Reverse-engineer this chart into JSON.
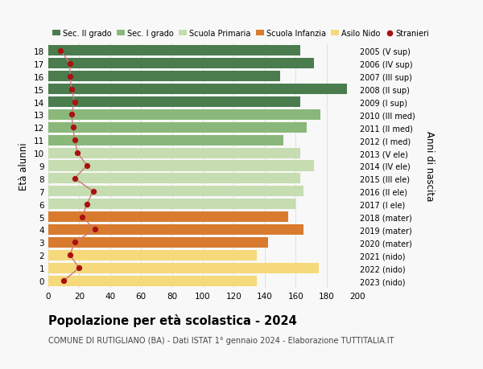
{
  "ages": [
    18,
    17,
    16,
    15,
    14,
    13,
    12,
    11,
    10,
    9,
    8,
    7,
    6,
    5,
    4,
    3,
    2,
    1,
    0
  ],
  "years": [
    "2005 (V sup)",
    "2006 (IV sup)",
    "2007 (III sup)",
    "2008 (II sup)",
    "2009 (I sup)",
    "2010 (III med)",
    "2011 (II med)",
    "2012 (I med)",
    "2013 (V ele)",
    "2014 (IV ele)",
    "2015 (III ele)",
    "2016 (II ele)",
    "2017 (I ele)",
    "2018 (mater)",
    "2019 (mater)",
    "2020 (mater)",
    "2021 (nido)",
    "2022 (nido)",
    "2023 (nido)"
  ],
  "bar_values": [
    163,
    172,
    150,
    193,
    163,
    176,
    167,
    152,
    163,
    172,
    163,
    165,
    160,
    155,
    165,
    142,
    135,
    175,
    135
  ],
  "stranieri": [
    8,
    14,
    14,
    15,
    17,
    15,
    16,
    17,
    19,
    25,
    17,
    29,
    25,
    22,
    30,
    17,
    14,
    20,
    10
  ],
  "bar_colors": [
    "#4a7c4e",
    "#4a7c4e",
    "#4a7c4e",
    "#4a7c4e",
    "#4a7c4e",
    "#8ab87a",
    "#8ab87a",
    "#8ab87a",
    "#c5ddb0",
    "#c5ddb0",
    "#c5ddb0",
    "#c5ddb0",
    "#c5ddb0",
    "#d97b2e",
    "#d97b2e",
    "#d97b2e",
    "#f5d97a",
    "#f5d97a",
    "#f5d97a"
  ],
  "legend_colors": [
    "#4a7c4e",
    "#8ab87a",
    "#c5ddb0",
    "#d97b2e",
    "#f5d97a",
    "#cc2222"
  ],
  "legend_labels": [
    "Sec. II grado",
    "Sec. I grado",
    "Scuola Primaria",
    "Scuola Infanzia",
    "Asilo Nido",
    "Stranieri"
  ],
  "title": "Popolazione per età scolastica - 2024",
  "subtitle": "COMUNE DI RUTIGLIANO (BA) - Dati ISTAT 1° gennaio 2024 - Elaborazione TUTTITALIA.IT",
  "right_label": "Anni di nascita",
  "ylabel": "Età alunni",
  "xlim": [
    0,
    200
  ],
  "xticks": [
    0,
    20,
    40,
    60,
    80,
    100,
    120,
    140,
    160,
    180,
    200
  ],
  "bg_color": "#f8f8f8",
  "grid_color": "#dddddd",
  "stranieri_color": "#aa1111",
  "stranieri_line_color": "#cc7777"
}
